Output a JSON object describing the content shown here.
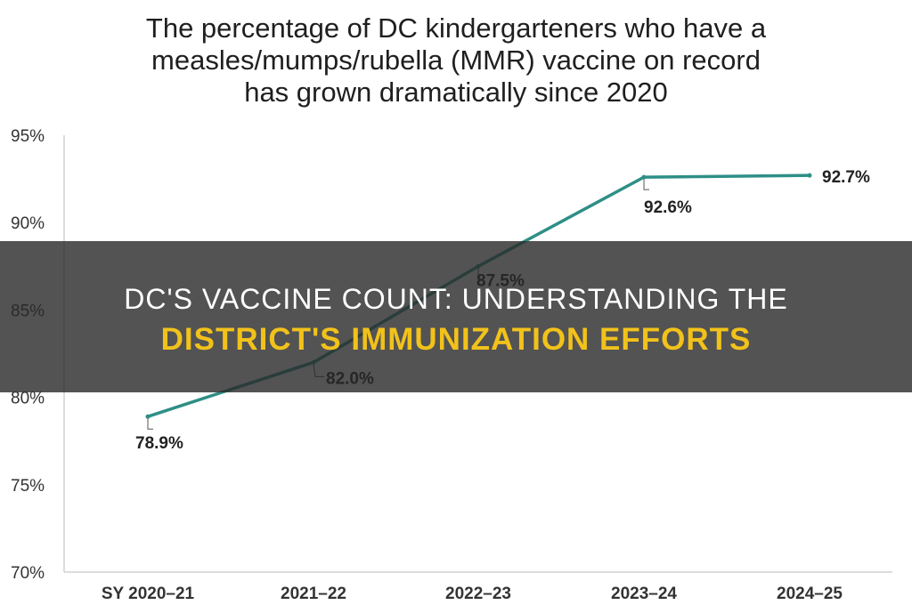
{
  "chart_data": {
    "type": "line",
    "title_lines": [
      "The percentage of  DC kindergarteners who have a",
      "measles/mumps/rubella (MMR) vaccine on record",
      "has grown dramatically since 2020"
    ],
    "categories": [
      "SY 2020–21",
      "2021–22",
      "2022–23",
      "2023–24",
      "2024–25"
    ],
    "values": [
      78.9,
      82.0,
      87.5,
      92.6,
      92.7
    ],
    "data_labels": [
      "78.9%",
      "82.0%",
      "87.5%",
      "92.6%",
      "92.7%"
    ],
    "yticks": [
      70,
      75,
      80,
      85,
      90,
      95
    ],
    "ytick_labels": [
      "70%",
      "75%",
      "80%",
      "85%",
      "90%",
      "95%"
    ],
    "ylim": [
      70,
      95
    ],
    "xlabel": "",
    "ylabel": "",
    "grid": false,
    "line_color": "#2e8f86"
  },
  "overlay": {
    "line1": "DC'S VACCINE COUNT: UNDERSTANDING THE",
    "line2": "DISTRICT'S IMMUNIZATION EFFORTS",
    "line2_color": "#f2c21b"
  }
}
